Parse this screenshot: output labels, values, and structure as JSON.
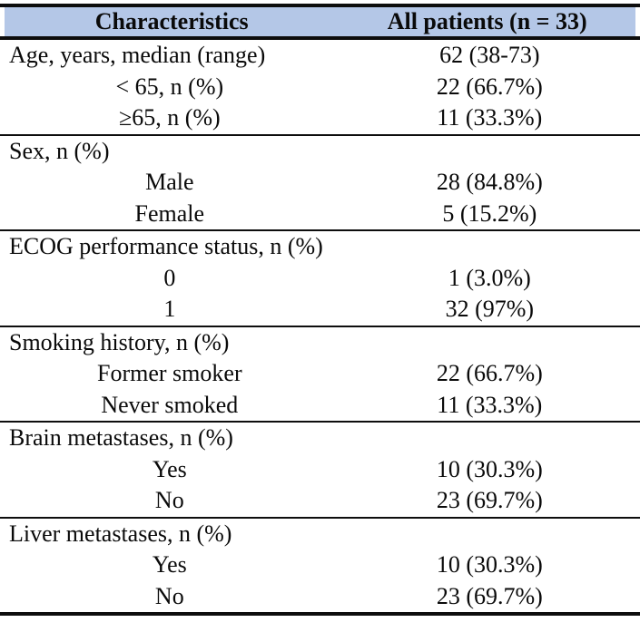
{
  "table": {
    "title_semantics": "Patient baseline characteristics table",
    "colors": {
      "header_bg": "#b4c7e7",
      "rule_color": "#0d0d0d",
      "text_color": "#0a0a0a"
    },
    "header": {
      "col1": "Characteristics",
      "col2": "All patients (n = 33)"
    },
    "sections": [
      {
        "rows": [
          {
            "label": "Age, years, median (range)",
            "value": "62 (38-73)",
            "indent": false
          },
          {
            "label": "< 65, n (%)",
            "value": "22 (66.7%)",
            "indent": true
          },
          {
            "label": "≥65, n (%)",
            "value": "11 (33.3%)",
            "indent": true
          }
        ]
      },
      {
        "rows": [
          {
            "label": "Sex, n (%)",
            "value": "",
            "indent": false
          },
          {
            "label": "Male",
            "value": "28 (84.8%)",
            "indent": true
          },
          {
            "label": "Female",
            "value": "5 (15.2%)",
            "indent": true
          }
        ]
      },
      {
        "rows": [
          {
            "label": "ECOG performance status, n (%)",
            "value": "",
            "indent": false
          },
          {
            "label": "0",
            "value": "1 (3.0%)",
            "indent": true
          },
          {
            "label": "1",
            "value": "32 (97%)",
            "indent": true
          }
        ]
      },
      {
        "rows": [
          {
            "label": "Smoking history, n (%)",
            "value": "",
            "indent": false
          },
          {
            "label": "Former smoker",
            "value": "22 (66.7%)",
            "indent": true
          },
          {
            "label": "Never smoked",
            "value": "11 (33.3%)",
            "indent": true
          }
        ]
      },
      {
        "rows": [
          {
            "label": "Brain metastases, n (%)",
            "value": "",
            "indent": false
          },
          {
            "label": "Yes",
            "value": "10 (30.3%)",
            "indent": true
          },
          {
            "label": "No",
            "value": "23 (69.7%)",
            "indent": true
          }
        ]
      },
      {
        "rows": [
          {
            "label": "Liver metastases, n (%)",
            "value": "",
            "indent": false
          },
          {
            "label": "Yes",
            "value": "10 (30.3%)",
            "indent": true
          },
          {
            "label": "No",
            "value": "23 (69.7%)",
            "indent": true
          }
        ]
      }
    ]
  }
}
